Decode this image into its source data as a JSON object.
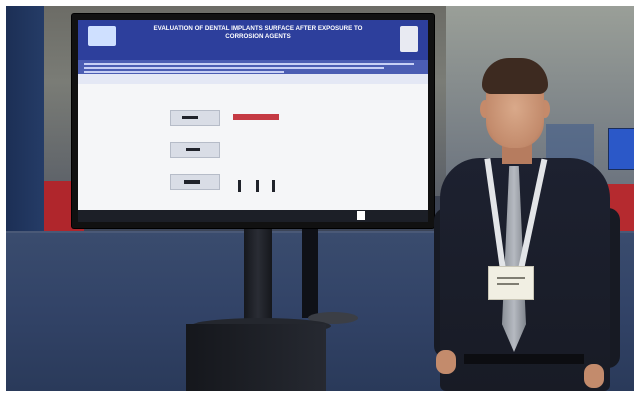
{
  "image": {
    "description_free": true
  },
  "poster": {
    "title": "EVALUATION OF DENTAL IMPLANTS SURFACE AFTER EXPOSURE TO CORROSION AGENTS"
  },
  "colors": {
    "poster_header": "#2d3f9c",
    "floor": "#324367",
    "booth_red": "#b0262c",
    "monitor_frame": "#111111"
  },
  "icons": [
    "poster-logo-icon",
    "lanyard-badge"
  ]
}
